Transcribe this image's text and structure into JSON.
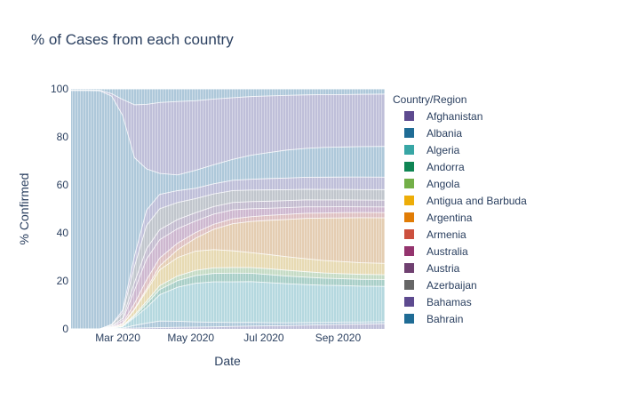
{
  "chart_data": {
    "type": "area",
    "title": "% of Cases from each country",
    "xlabel": "Date",
    "ylabel": "% Confirmed",
    "ylim": [
      0,
      100
    ],
    "y_ticks": [
      0,
      20,
      40,
      60,
      80,
      100
    ],
    "x_range": [
      "2020-01-22",
      "2020-10-10"
    ],
    "x_ticks": [
      {
        "date": "2020-03-01",
        "label": "Mar 2020"
      },
      {
        "date": "2020-05-01",
        "label": "May 2020"
      },
      {
        "date": "2020-07-01",
        "label": "Jul 2020"
      },
      {
        "date": "2020-09-01",
        "label": "Sep 2020"
      }
    ],
    "grid": false,
    "legend_placement": "right",
    "legend_title": "Country/Region",
    "legend": [
      {
        "name": "Afghanistan",
        "color": "#5D4A8F"
      },
      {
        "name": "Albania",
        "color": "#1F6C95"
      },
      {
        "name": "Algeria",
        "color": "#38A6A5"
      },
      {
        "name": "Andorra",
        "color": "#0F8554"
      },
      {
        "name": "Angola",
        "color": "#73AF48"
      },
      {
        "name": "Antigua and Barbuda",
        "color": "#EDAD08"
      },
      {
        "name": "Argentina",
        "color": "#E17C05"
      },
      {
        "name": "Armenia",
        "color": "#CC503E"
      },
      {
        "name": "Australia",
        "color": "#94346E"
      },
      {
        "name": "Austria",
        "color": "#6F4070"
      },
      {
        "name": "Azerbaijan",
        "color": "#666666"
      },
      {
        "name": "Bahamas",
        "color": "#5D4A8F"
      },
      {
        "name": "Bahrain",
        "color": "#1F6C95"
      }
    ],
    "dates": [
      "2020-01-22",
      "2020-02-05",
      "2020-02-15",
      "2020-02-25",
      "2020-03-05",
      "2020-03-15",
      "2020-03-25",
      "2020-04-05",
      "2020-04-20",
      "2020-05-05",
      "2020-05-20",
      "2020-06-05",
      "2020-06-20",
      "2020-07-05",
      "2020-07-20",
      "2020-08-05",
      "2020-08-20",
      "2020-09-05",
      "2020-09-20",
      "2020-10-10"
    ],
    "series": [
      {
        "name": "Albania",
        "values": [
          0,
          0,
          0,
          0.1,
          0.2,
          0.3,
          0.4,
          0.5,
          0.6,
          0.7,
          0.8,
          1,
          1.2,
          1.3,
          1.4,
          1.6,
          1.8,
          2,
          2.1,
          2.3
        ]
      },
      {
        "name": "Afghanistan",
        "values": [
          0,
          0,
          0,
          0,
          0.1,
          1,
          1.8,
          2.5,
          2.3,
          2,
          1.8,
          1.6,
          1.5,
          1.3,
          1.2,
          1.1,
          1,
          1,
          0.9,
          0.9
        ]
      },
      {
        "name": "Algeria",
        "values": [
          0,
          0,
          0,
          0.2,
          0.5,
          3,
          6,
          10,
          13,
          15,
          16,
          16.5,
          17,
          17,
          16.8,
          16.5,
          16.2,
          16,
          15.8,
          15.5
        ]
      },
      {
        "name": "Angola",
        "values": [
          0,
          0,
          0,
          0,
          0.2,
          0.5,
          1.5,
          2,
          2.5,
          3,
          3.3,
          3.5,
          3.5,
          3.4,
          3.3,
          3.2,
          3.1,
          3,
          3,
          3
        ]
      },
      {
        "name": "Andorra",
        "values": [
          0,
          0,
          0,
          0,
          0.1,
          0.5,
          1,
          1.5,
          1.8,
          2,
          2.2,
          2.3,
          2.4,
          2.5,
          2.5,
          2.4,
          2.3,
          2.2,
          2.2,
          2.1
        ]
      },
      {
        "name": "Armenia",
        "values": [
          0,
          0,
          0,
          0.2,
          0.5,
          2,
          4,
          6,
          7,
          7.5,
          7.2,
          6.8,
          6.2,
          6,
          5.8,
          5.6,
          5.4,
          5.3,
          5.1,
          5
        ]
      },
      {
        "name": "Bahrain",
        "values": [
          0,
          0,
          0,
          0,
          0.1,
          0.3,
          0.8,
          1.5,
          3,
          5,
          8,
          11,
          13,
          14.5,
          16,
          17.5,
          18.5,
          19.2,
          19.8,
          20
        ]
      },
      {
        "name": "Australia",
        "values": [
          0,
          0,
          0,
          0.2,
          0.5,
          2,
          3.5,
          3,
          2.5,
          2.2,
          2,
          2,
          2,
          2.1,
          2.2,
          2.2,
          2.2,
          2.3,
          2.3,
          2.3
        ]
      },
      {
        "name": "Azerbaijan",
        "values": [
          0,
          0,
          0,
          0.3,
          1,
          5,
          8,
          7,
          5.5,
          4.5,
          4,
          3.6,
          3.3,
          3,
          2.9,
          2.8,
          2.7,
          2.6,
          2.5,
          2.5
        ]
      },
      {
        "name": "Antigua and Barbuda",
        "values": [
          0,
          0,
          0,
          0.2,
          0.8,
          3,
          4,
          3.8,
          3.5,
          3.2,
          3,
          3,
          3,
          3,
          3,
          3,
          3,
          3,
          3,
          3
        ]
      },
      {
        "name": "Argentina",
        "values": [
          0,
          0,
          0,
          0.5,
          2,
          6,
          9,
          8,
          6.5,
          5.5,
          5,
          4.8,
          4.8,
          4.8,
          4.7,
          4.6,
          4.6,
          4.6,
          4.6,
          4.6
        ]
      },
      {
        "name": "Austria",
        "values": [
          0,
          0,
          0,
          0.2,
          1,
          4,
          6,
          5.5,
          4.5,
          4,
          4,
          4.2,
          4.5,
          4.8,
          5,
          5.2,
          5.3,
          5.4,
          5.5,
          5.5
        ]
      },
      {
        "name": "Bahamas",
        "values": [
          99.3,
          99.3,
          99.2,
          94,
          74,
          37,
          16,
          8,
          6,
          7,
          7.5,
          8.5,
          10,
          11,
          12,
          12.5,
          13,
          13.2,
          13.4,
          13.5
        ]
      },
      {
        "name": "Afghanistan",
        "values": [
          0.2,
          0.2,
          0.2,
          1,
          6,
          20,
          25,
          27,
          28,
          27,
          26,
          25,
          24.5,
          24,
          23.5,
          23.2,
          23,
          23,
          23,
          23
        ]
      },
      {
        "name": "Albania",
        "values": [
          0.5,
          0.5,
          0.6,
          2,
          4,
          6,
          6,
          5.2,
          4.8,
          4.6,
          4,
          3.6,
          3.2,
          3,
          2.8,
          2.6,
          2.5,
          2.5,
          2.4,
          2.3
        ]
      }
    ]
  }
}
